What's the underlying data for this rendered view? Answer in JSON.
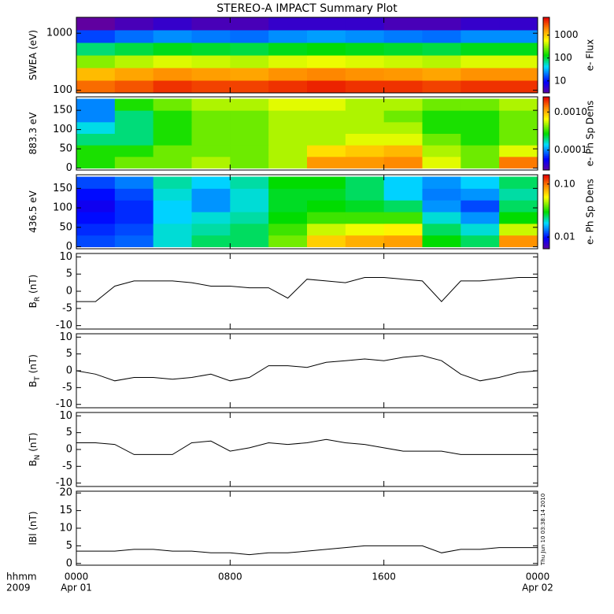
{
  "chart_data": [
    {
      "type": "heatmap",
      "title": "STEREO-A IMPACT Summary Plot",
      "ylabel": "SWEA (eV)",
      "colorbar_label": "e- Flux",
      "x": [
        1,
        3,
        5,
        7,
        9,
        11,
        13,
        15,
        17,
        19,
        21,
        23
      ],
      "y": [
        116,
        193,
        321,
        533,
        887,
        1476
      ],
      "z": [
        [
          2500,
          3000,
          4000,
          3500,
          3500,
          4000,
          4500,
          4000,
          4000,
          3500,
          4000,
          4000
        ],
        [
          1200,
          1500,
          1800,
          1600,
          1500,
          1800,
          2000,
          1800,
          1700,
          1500,
          1800,
          1800
        ],
        [
          300,
          400,
          500,
          450,
          400,
          500,
          550,
          500,
          450,
          400,
          500,
          500
        ],
        [
          80,
          100,
          120,
          110,
          100,
          120,
          130,
          120,
          110,
          100,
          120,
          120
        ],
        [
          15,
          20,
          25,
          22,
          20,
          25,
          28,
          25,
          22,
          20,
          25,
          25
        ],
        [
          3,
          4,
          5,
          4,
          4,
          5,
          5,
          5,
          4,
          4,
          5,
          5
        ]
      ],
      "xlim": [
        0,
        24
      ],
      "ylim": [
        90,
        1900
      ],
      "ylog": true,
      "yticks": [
        100,
        1000
      ],
      "clim": [
        3,
        6000
      ],
      "clog": true,
      "cticks": [
        10,
        100,
        1000
      ],
      "colormap": "rainbow"
    },
    {
      "type": "heatmap",
      "ylabel": "883.3 eV",
      "colorbar_label": "e- Ph Sp Dens",
      "x": [
        1,
        3,
        5,
        7,
        9,
        11,
        13,
        15,
        17,
        19,
        21,
        23
      ],
      "y": [
        15,
        45,
        75,
        105,
        135,
        165
      ],
      "z": [
        [
          0.0003,
          0.0004,
          0.0004,
          0.0005,
          0.0004,
          0.0005,
          0.0012,
          0.0012,
          0.0013,
          0.0006,
          0.0004,
          0.0014
        ],
        [
          0.0003,
          0.0003,
          0.0004,
          0.0004,
          0.0004,
          0.0005,
          0.0008,
          0.0009,
          0.001,
          0.0005,
          0.0004,
          0.0006
        ],
        [
          0.0002,
          0.0002,
          0.0003,
          0.0004,
          0.0004,
          0.0005,
          0.0005,
          0.0006,
          0.0006,
          0.0004,
          0.0003,
          0.0004
        ],
        [
          0.00015,
          0.0002,
          0.0003,
          0.0004,
          0.0004,
          0.0005,
          0.0005,
          0.0005,
          0.0005,
          0.0003,
          0.0003,
          0.0004
        ],
        [
          0.0001,
          0.0002,
          0.0003,
          0.0004,
          0.0004,
          0.0005,
          0.0005,
          0.0005,
          0.0004,
          0.0003,
          0.0003,
          0.0004
        ],
        [
          0.0001,
          0.0003,
          0.0004,
          0.0005,
          0.0005,
          0.0006,
          0.0006,
          0.0005,
          0.0005,
          0.0004,
          0.0004,
          0.0005
        ]
      ],
      "xlim": [
        0,
        24
      ],
      "ylim": [
        -5,
        185
      ],
      "yticks": [
        0,
        50,
        100,
        150
      ],
      "clim": [
        3e-05,
        0.0025
      ],
      "clog": true,
      "cticks": [
        0.0001,
        {
          "value": 0.001,
          "label": "0.0010"
        }
      ],
      "colormap": "rainbow"
    },
    {
      "type": "heatmap",
      "ylabel": "436.5 eV",
      "colorbar_label": "e- Ph Sp Dens",
      "x": [
        1,
        3,
        5,
        7,
        9,
        11,
        13,
        15,
        17,
        19,
        21,
        23
      ],
      "y": [
        15,
        45,
        75,
        105,
        135,
        165
      ],
      "z": [
        [
          0.012,
          0.013,
          0.02,
          0.025,
          0.025,
          0.04,
          0.07,
          0.08,
          0.085,
          0.03,
          0.025,
          0.09
        ],
        [
          0.011,
          0.012,
          0.02,
          0.022,
          0.025,
          0.035,
          0.05,
          0.055,
          0.06,
          0.025,
          0.02,
          0.05
        ],
        [
          0.01,
          0.011,
          0.018,
          0.02,
          0.022,
          0.03,
          0.035,
          0.035,
          0.035,
          0.02,
          0.015,
          0.03
        ],
        [
          0.009,
          0.011,
          0.018,
          0.015,
          0.02,
          0.028,
          0.03,
          0.028,
          0.025,
          0.015,
          0.012,
          0.025
        ],
        [
          0.01,
          0.012,
          0.02,
          0.015,
          0.02,
          0.028,
          0.028,
          0.025,
          0.018,
          0.014,
          0.015,
          0.022
        ],
        [
          0.012,
          0.014,
          0.022,
          0.018,
          0.022,
          0.03,
          0.03,
          0.025,
          0.018,
          0.015,
          0.018,
          0.025
        ]
      ],
      "xlim": [
        0,
        24
      ],
      "ylim": [
        -5,
        185
      ],
      "yticks": [
        0,
        50,
        100,
        150
      ],
      "clim": [
        0.006,
        0.15
      ],
      "clog": true,
      "cticks": [
        0.01,
        {
          "value": 0.1,
          "label": "0.10"
        }
      ],
      "colormap": "rainbow"
    },
    {
      "type": "line",
      "ylabel": "B",
      "ylabel_sub": "R",
      "ylabel_unit": "(nT)",
      "color": "#000000",
      "x": [
        0,
        1,
        2,
        3,
        4,
        5,
        6,
        7,
        8,
        9,
        10,
        11,
        12,
        13,
        14,
        15,
        16,
        17,
        18,
        19,
        20,
        21,
        22,
        23,
        24
      ],
      "values": [
        -3,
        -3,
        1.5,
        3,
        3,
        3,
        2.5,
        1.5,
        1.5,
        1,
        1,
        -2,
        3.5,
        3,
        2.5,
        4,
        4,
        3.5,
        3,
        -3,
        3,
        3,
        3.5,
        4,
        4
      ],
      "xlim": [
        0,
        24
      ],
      "ylim": [
        -11,
        11
      ],
      "yticks": [
        -10,
        -5,
        0,
        5,
        10
      ]
    },
    {
      "type": "line",
      "ylabel": "B",
      "ylabel_sub": "T",
      "ylabel_unit": "(nT)",
      "color": "#000000",
      "x": [
        0,
        1,
        2,
        3,
        4,
        5,
        6,
        7,
        8,
        9,
        10,
        11,
        12,
        13,
        14,
        15,
        16,
        17,
        18,
        19,
        20,
        21,
        22,
        23,
        24
      ],
      "values": [
        0,
        -1,
        -3,
        -2,
        -2,
        -2.5,
        -2,
        -1,
        -3,
        -2,
        1.5,
        1.5,
        1,
        2.5,
        3,
        3.5,
        3,
        4,
        4.5,
        3,
        -1,
        -3,
        -2,
        -0.5,
        0
      ],
      "xlim": [
        0,
        24
      ],
      "ylim": [
        -11,
        11
      ],
      "yticks": [
        -10,
        -5,
        0,
        5,
        10
      ]
    },
    {
      "type": "line",
      "ylabel": "B",
      "ylabel_sub": "N",
      "ylabel_unit": "(nT)",
      "color": "#000000",
      "x": [
        0,
        1,
        2,
        3,
        4,
        5,
        6,
        7,
        8,
        9,
        10,
        11,
        12,
        13,
        14,
        15,
        16,
        17,
        18,
        19,
        20,
        21,
        22,
        23,
        24
      ],
      "values": [
        2,
        2,
        1.5,
        -1.5,
        -1.5,
        -1.5,
        2,
        2.5,
        -0.5,
        0.5,
        2,
        1.5,
        2,
        3,
        2,
        1.5,
        0.5,
        -0.5,
        -0.5,
        -0.5,
        -1.5,
        -1.5,
        -1.5,
        -1.5,
        -1.5
      ],
      "xlim": [
        0,
        24
      ],
      "ylim": [
        -11,
        11
      ],
      "yticks": [
        -10,
        -5,
        0,
        5,
        10
      ]
    },
    {
      "type": "line",
      "ylabel": "lBl (nT)",
      "color": "#000000",
      "x": [
        0,
        1,
        2,
        3,
        4,
        5,
        6,
        7,
        8,
        9,
        10,
        11,
        12,
        13,
        14,
        15,
        16,
        17,
        18,
        19,
        20,
        21,
        22,
        23,
        24
      ],
      "values": [
        3.5,
        3.5,
        3.5,
        4,
        4,
        3.5,
        3.5,
        3,
        3,
        2.5,
        3,
        3,
        3.5,
        4,
        4.5,
        5,
        5,
        5,
        5,
        3,
        4,
        4,
        4.5,
        4.5,
        4.5
      ],
      "xlim": [
        0,
        24
      ],
      "ylim": [
        -0.5,
        20.5
      ],
      "yticks": [
        0,
        5,
        10,
        15,
        20
      ],
      "xticks": [
        {
          "value": 0,
          "label": "0000"
        },
        {
          "value": 8,
          "label": "0800"
        },
        {
          "value": 16,
          "label": "1600"
        },
        {
          "value": 24,
          "label": "0000"
        }
      ],
      "x_date_labels": [
        {
          "value": 0,
          "label": "Apr 01"
        },
        {
          "value": 24,
          "label": "Apr 02"
        }
      ],
      "xlabel": [
        "hhmm",
        "2009"
      ],
      "footnote": "Thu Jun 10 03:38:14 2010"
    }
  ]
}
